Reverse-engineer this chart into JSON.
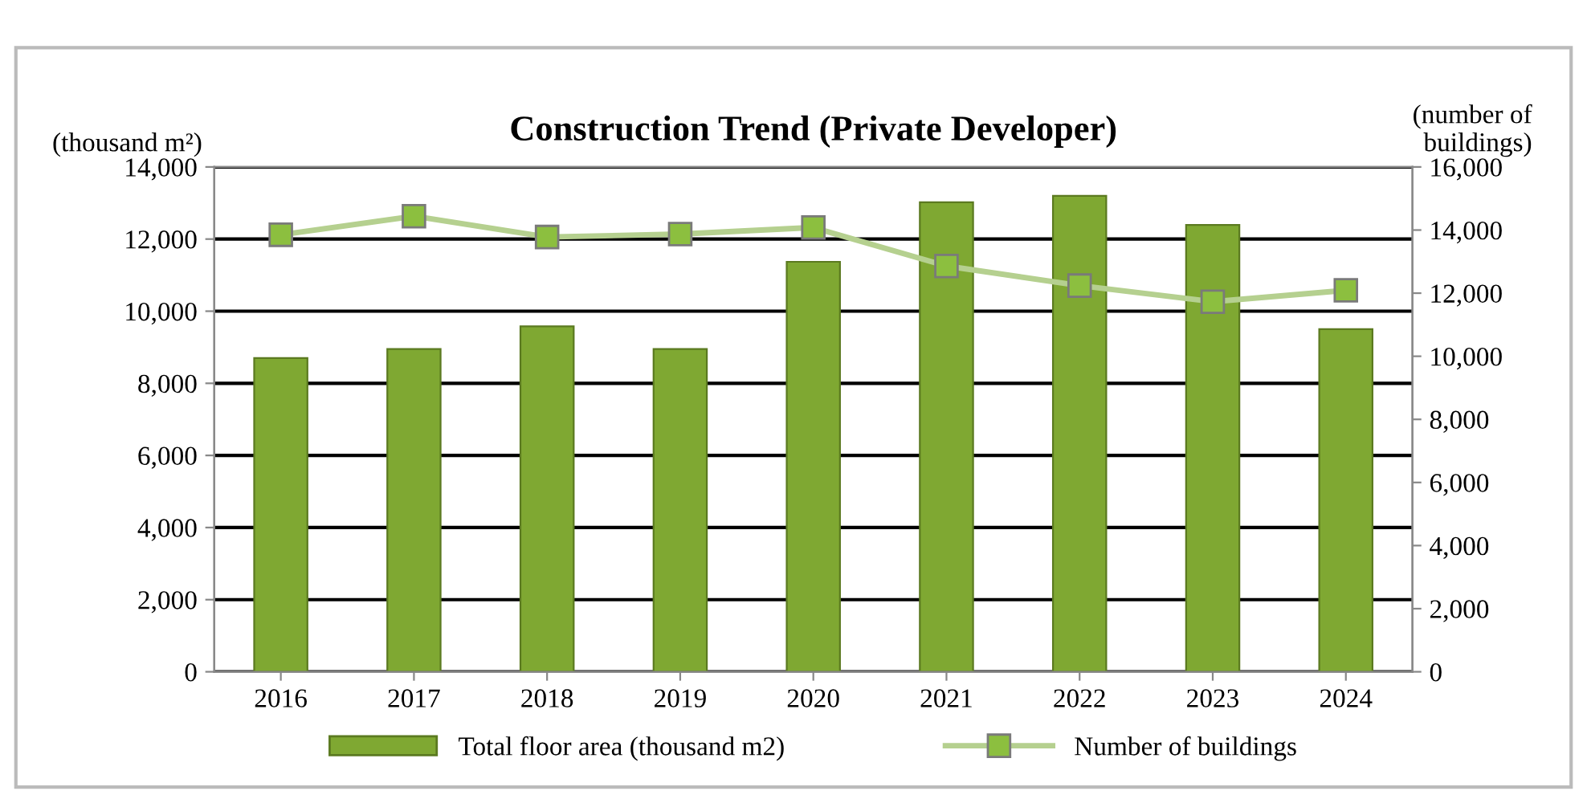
{
  "chart_data": {
    "type": "bar",
    "title": "Construction Trend (Private Developer)",
    "ylabel": "(thousand m²)",
    "y2label": "(number of\nbuildings)",
    "categories": [
      "2016",
      "2017",
      "2018",
      "2019",
      "2020",
      "2021",
      "2022",
      "2023",
      "2024"
    ],
    "series": [
      {
        "name": "Total floor area (thousand m2)",
        "color": "#7fa832",
        "values": [
          8700,
          8950,
          9580,
          8950,
          11370,
          13020,
          13200,
          12390,
          9500
        ]
      },
      {
        "name": "Number of buildings",
        "type": "line",
        "axis": "y2",
        "color": "#b5d08f",
        "marker": "square",
        "values": [
          13850,
          14440,
          13780,
          13870,
          14080,
          12860,
          12240,
          11730,
          12090
        ]
      }
    ],
    "ylim": [
      0,
      14000
    ],
    "yticks": [
      {
        "value": 0,
        "label": "0"
      },
      {
        "value": 2000,
        "label": "2,000"
      },
      {
        "value": 4000,
        "label": "4,000"
      },
      {
        "value": 6000,
        "label": "6,000"
      },
      {
        "value": 8000,
        "label": "8,000"
      },
      {
        "value": 10000,
        "label": "10,000"
      },
      {
        "value": 12000,
        "label": "12,000"
      },
      {
        "value": 14000,
        "label": "14,000"
      }
    ],
    "y2lim": [
      0,
      16000
    ],
    "y2ticks": [
      {
        "value": 0,
        "label": "0"
      },
      {
        "value": 2000,
        "label": "2,000"
      },
      {
        "value": 4000,
        "label": "4,000"
      },
      {
        "value": 6000,
        "label": "6,000"
      },
      {
        "value": 8000,
        "label": "8,000"
      },
      {
        "value": 10000,
        "label": "10,000"
      },
      {
        "value": 12000,
        "label": "12,000"
      },
      {
        "value": 14000,
        "label": "14,000"
      },
      {
        "value": 16000,
        "label": "16,000"
      }
    ],
    "grid": "y",
    "legend": "bottom"
  }
}
